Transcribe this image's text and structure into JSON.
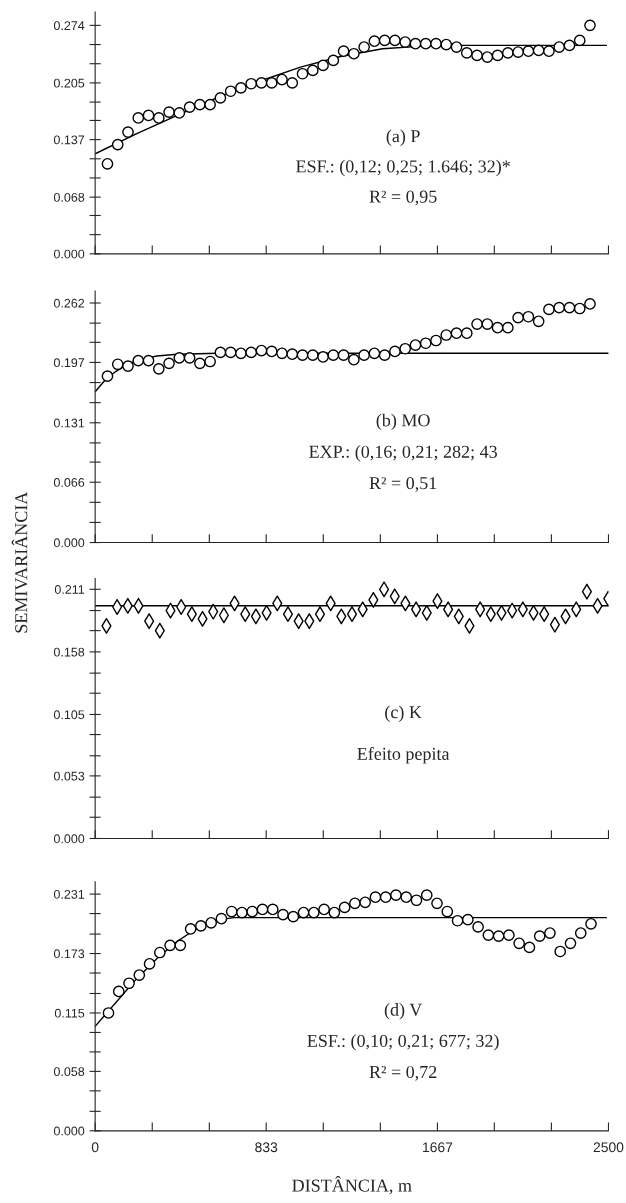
{
  "chart_data": [
    {
      "type": "scatter",
      "xlim": [
        0,
        2500
      ],
      "ylim": [
        0,
        0.29
      ],
      "tick_labels": "y",
      "xticks": [
        0,
        {
          "value": 278,
          "label": null
        },
        {
          "value": 556,
          "label": null
        },
        833,
        {
          "value": 1111,
          "label": null
        },
        {
          "value": 1389,
          "label": null
        },
        1667,
        {
          "value": 1944,
          "label": null
        },
        {
          "value": 2222,
          "label": null
        },
        2500
      ],
      "yticks": [
        {
          "value": 0,
          "label": "0.000"
        },
        {
          "value": 0.023,
          "label": null
        },
        {
          "value": 0.046,
          "label": null
        },
        0.068,
        {
          "value": 0.091,
          "label": null
        },
        {
          "value": 0.114,
          "label": null
        },
        0.137,
        {
          "value": 0.16,
          "label": null
        },
        {
          "value": 0.182,
          "label": null
        },
        0.205,
        {
          "value": 0.228,
          "label": null
        },
        {
          "value": 0.251,
          "label": null
        },
        0.274
      ],
      "annotations": [
        "(a) P",
        "ESF.: (0,12; 0,25; 1.646; 32)*",
        "R² = 0,95"
      ],
      "series": [
        {
          "marker": "circle",
          "color": "#000000",
          "x": [
            60,
            110,
            160,
            210,
            260,
            310,
            360,
            410,
            460,
            510,
            560,
            610,
            660,
            710,
            760,
            810,
            860,
            910,
            960,
            1010,
            1060,
            1110,
            1160,
            1210,
            1260,
            1310,
            1360,
            1410,
            1460,
            1510,
            1560,
            1610,
            1660,
            1710,
            1760,
            1810,
            1860,
            1910,
            1960,
            2010,
            2060,
            2110,
            2160,
            2210,
            2260,
            2310,
            2360,
            2410
          ],
          "values": [
            0.108,
            0.131,
            0.146,
            0.163,
            0.166,
            0.163,
            0.17,
            0.169,
            0.176,
            0.179,
            0.179,
            0.187,
            0.195,
            0.199,
            0.204,
            0.205,
            0.205,
            0.209,
            0.205,
            0.216,
            0.22,
            0.226,
            0.232,
            0.243,
            0.24,
            0.248,
            0.255,
            0.256,
            0.256,
            0.254,
            0.252,
            0.252,
            0.252,
            0.251,
            0.248,
            0.241,
            0.238,
            0.236,
            0.238,
            0.241,
            0.242,
            0.243,
            0.244,
            0.243,
            0.248,
            0.25,
            0.256,
            0.274
          ]
        },
        {
          "type": "line",
          "marker": "none",
          "line_style": "solid",
          "color": "#000000",
          "x": [
            0,
            200,
            400,
            600,
            800,
            1000,
            1200,
            1400,
            1646,
            2490
          ],
          "values": [
            0.12,
            0.144,
            0.166,
            0.188,
            0.207,
            0.224,
            0.237,
            0.246,
            0.25,
            0.25
          ]
        }
      ]
    },
    {
      "type": "scatter",
      "xlim": [
        0,
        2500
      ],
      "ylim": [
        0,
        0.275
      ],
      "tick_labels": "y",
      "ylabel": "SEMIVARIÂNCIA",
      "xticks": [
        0,
        {
          "value": 278,
          "label": null
        },
        {
          "value": 556,
          "label": null
        },
        833,
        {
          "value": 1111,
          "label": null
        },
        {
          "value": 1389,
          "label": null
        },
        1667,
        {
          "value": 1944,
          "label": null
        },
        {
          "value": 2222,
          "label": null
        },
        2500
      ],
      "yticks": [
        {
          "value": 0,
          "label": "0.000"
        },
        {
          "value": 0.022,
          "label": null
        },
        {
          "value": 0.044,
          "label": null
        },
        0.066,
        {
          "value": 0.088,
          "label": null
        },
        {
          "value": 0.109,
          "label": null
        },
        0.131,
        {
          "value": 0.153,
          "label": null
        },
        {
          "value": 0.175,
          "label": null
        },
        0.197,
        {
          "value": 0.219,
          "label": null
        },
        {
          "value": 0.24,
          "label": null
        },
        0.262
      ],
      "annotations": [
        "(b) MO",
        "EXP.: (0,16; 0,21; 282; 43",
        "R² = 0,51"
      ],
      "series": [
        {
          "marker": "circle",
          "color": "#000000",
          "x": [
            60,
            110,
            160,
            210,
            260,
            310,
            360,
            410,
            460,
            510,
            560,
            610,
            660,
            710,
            760,
            810,
            860,
            910,
            960,
            1010,
            1060,
            1110,
            1160,
            1210,
            1260,
            1310,
            1360,
            1410,
            1460,
            1510,
            1560,
            1610,
            1660,
            1710,
            1760,
            1810,
            1860,
            1910,
            1960,
            2010,
            2060,
            2110,
            2160,
            2210,
            2260,
            2310,
            2360,
            2410
          ],
          "values": [
            0.182,
            0.195,
            0.193,
            0.199,
            0.199,
            0.19,
            0.196,
            0.202,
            0.202,
            0.196,
            0.198,
            0.208,
            0.208,
            0.207,
            0.208,
            0.21,
            0.209,
            0.207,
            0.206,
            0.205,
            0.205,
            0.203,
            0.205,
            0.205,
            0.2,
            0.205,
            0.207,
            0.205,
            0.209,
            0.212,
            0.216,
            0.218,
            0.221,
            0.227,
            0.229,
            0.229,
            0.239,
            0.239,
            0.235,
            0.235,
            0.246,
            0.247,
            0.242,
            0.255,
            0.257,
            0.257,
            0.256,
            0.261
          ]
        },
        {
          "type": "line",
          "marker": "none",
          "line_style": "solid",
          "color": "#000000",
          "x": [
            0,
            50,
            100,
            150,
            200,
            300,
            400,
            600,
            2500
          ],
          "values": [
            0.165,
            0.178,
            0.187,
            0.194,
            0.199,
            0.204,
            0.206,
            0.207,
            0.207
          ]
        }
      ]
    },
    {
      "type": "scatter",
      "xlim": [
        0,
        2500
      ],
      "ylim": [
        0,
        0.22
      ],
      "tick_labels": "y",
      "xticks": [
        0,
        {
          "value": 278,
          "label": null
        },
        {
          "value": 556,
          "label": null
        },
        833,
        {
          "value": 1111,
          "label": null
        },
        {
          "value": 1389,
          "label": null
        },
        1667,
        {
          "value": 1944,
          "label": null
        },
        {
          "value": 2222,
          "label": null
        },
        2500
      ],
      "yticks": [
        {
          "value": 0,
          "label": "0.000"
        },
        {
          "value": 0.018,
          "label": null
        },
        {
          "value": 0.035,
          "label": null
        },
        0.053,
        {
          "value": 0.07,
          "label": null
        },
        {
          "value": 0.088,
          "label": null
        },
        0.105,
        {
          "value": 0.123,
          "label": null
        },
        {
          "value": 0.14,
          "label": null
        },
        0.158,
        {
          "value": 0.176,
          "label": null
        },
        {
          "value": 0.193,
          "label": null
        },
        0.211
      ],
      "annotations": [
        "(c) K",
        "Efeito pepita"
      ],
      "series": [
        {
          "marker": "diamond",
          "color": "#000000",
          "x": [
            55,
            107,
            159,
            211,
            263,
            315,
            367,
            419,
            471,
            523,
            575,
            627,
            679,
            731,
            783,
            835,
            887,
            939,
            991,
            1043,
            1095,
            1147,
            1199,
            1251,
            1303,
            1355,
            1407,
            1459,
            1511,
            1563,
            1615,
            1667,
            1719,
            1771,
            1823,
            1875,
            1927,
            1979,
            2031,
            2083,
            2135,
            2187,
            2239,
            2291,
            2343,
            2395,
            2447,
            2499
          ],
          "values": [
            0.18,
            0.196,
            0.197,
            0.197,
            0.184,
            0.176,
            0.193,
            0.196,
            0.19,
            0.186,
            0.192,
            0.189,
            0.199,
            0.19,
            0.188,
            0.191,
            0.199,
            0.19,
            0.184,
            0.184,
            0.19,
            0.199,
            0.188,
            0.19,
            0.194,
            0.202,
            0.211,
            0.205,
            0.199,
            0.194,
            0.191,
            0.201,
            0.194,
            0.188,
            0.18,
            0.194,
            0.19,
            0.191,
            0.193,
            0.194,
            0.191,
            0.19,
            0.181,
            0.188,
            0.194,
            0.209,
            0.197,
            0.203
          ]
        },
        {
          "type": "line",
          "marker": "none",
          "line_style": "solid",
          "color": "#000000",
          "x": [
            0,
            2500
          ],
          "values": [
            0.197,
            0.197
          ]
        }
      ]
    },
    {
      "type": "scatter",
      "xlim": [
        0,
        2500
      ],
      "ylim": [
        0,
        0.243
      ],
      "xlabel": "DISTÂNCIA, m",
      "xticks": [
        0,
        {
          "value": 278,
          "label": null
        },
        {
          "value": 556,
          "label": null
        },
        833,
        {
          "value": 1111,
          "label": null
        },
        {
          "value": 1389,
          "label": null
        },
        1667,
        {
          "value": 1944,
          "label": null
        },
        {
          "value": 2222,
          "label": null
        },
        2500
      ],
      "yticks": [
        {
          "value": 0,
          "label": "0.000"
        },
        {
          "value": 0.019,
          "label": null
        },
        {
          "value": 0.039,
          "label": null
        },
        0.058,
        {
          "value": 0.077,
          "label": null
        },
        {
          "value": 0.096,
          "label": null
        },
        0.115,
        {
          "value": 0.134,
          "label": null
        },
        {
          "value": 0.154,
          "label": null
        },
        0.173,
        {
          "value": 0.192,
          "label": null
        },
        {
          "value": 0.212,
          "label": null
        },
        0.231
      ],
      "annotations": [
        "(d) V",
        "ESF.: (0,10; 0,21; 677; 32)",
        "R² = 0,72"
      ],
      "series": [
        {
          "marker": "circle",
          "color": "#000000",
          "x": [
            65,
            115,
            165,
            215,
            265,
            315,
            365,
            415,
            465,
            515,
            565,
            615,
            665,
            715,
            765,
            815,
            865,
            915,
            965,
            1015,
            1065,
            1115,
            1165,
            1215,
            1265,
            1315,
            1365,
            1415,
            1465,
            1515,
            1565,
            1615,
            1665,
            1715,
            1765,
            1815,
            1865,
            1915,
            1965,
            2015,
            2065,
            2115,
            2165,
            2215,
            2265,
            2315,
            2365,
            2415
          ],
          "values": [
            0.115,
            0.136,
            0.144,
            0.152,
            0.163,
            0.174,
            0.181,
            0.181,
            0.197,
            0.2,
            0.203,
            0.207,
            0.214,
            0.213,
            0.214,
            0.216,
            0.216,
            0.211,
            0.209,
            0.213,
            0.213,
            0.216,
            0.213,
            0.218,
            0.222,
            0.223,
            0.228,
            0.228,
            0.23,
            0.228,
            0.225,
            0.23,
            0.222,
            0.214,
            0.205,
            0.206,
            0.199,
            0.191,
            0.19,
            0.191,
            0.183,
            0.179,
            0.19,
            0.193,
            0.175,
            0.183,
            0.193,
            0.202
          ]
        },
        {
          "type": "line",
          "marker": "none",
          "line_style": "solid",
          "color": "#000000",
          "x": [
            0,
            100,
            200,
            300,
            400,
            500,
            600,
            677,
            2490
          ],
          "values": [
            0.102,
            0.125,
            0.148,
            0.168,
            0.185,
            0.198,
            0.206,
            0.208,
            0.208
          ]
        }
      ]
    }
  ]
}
